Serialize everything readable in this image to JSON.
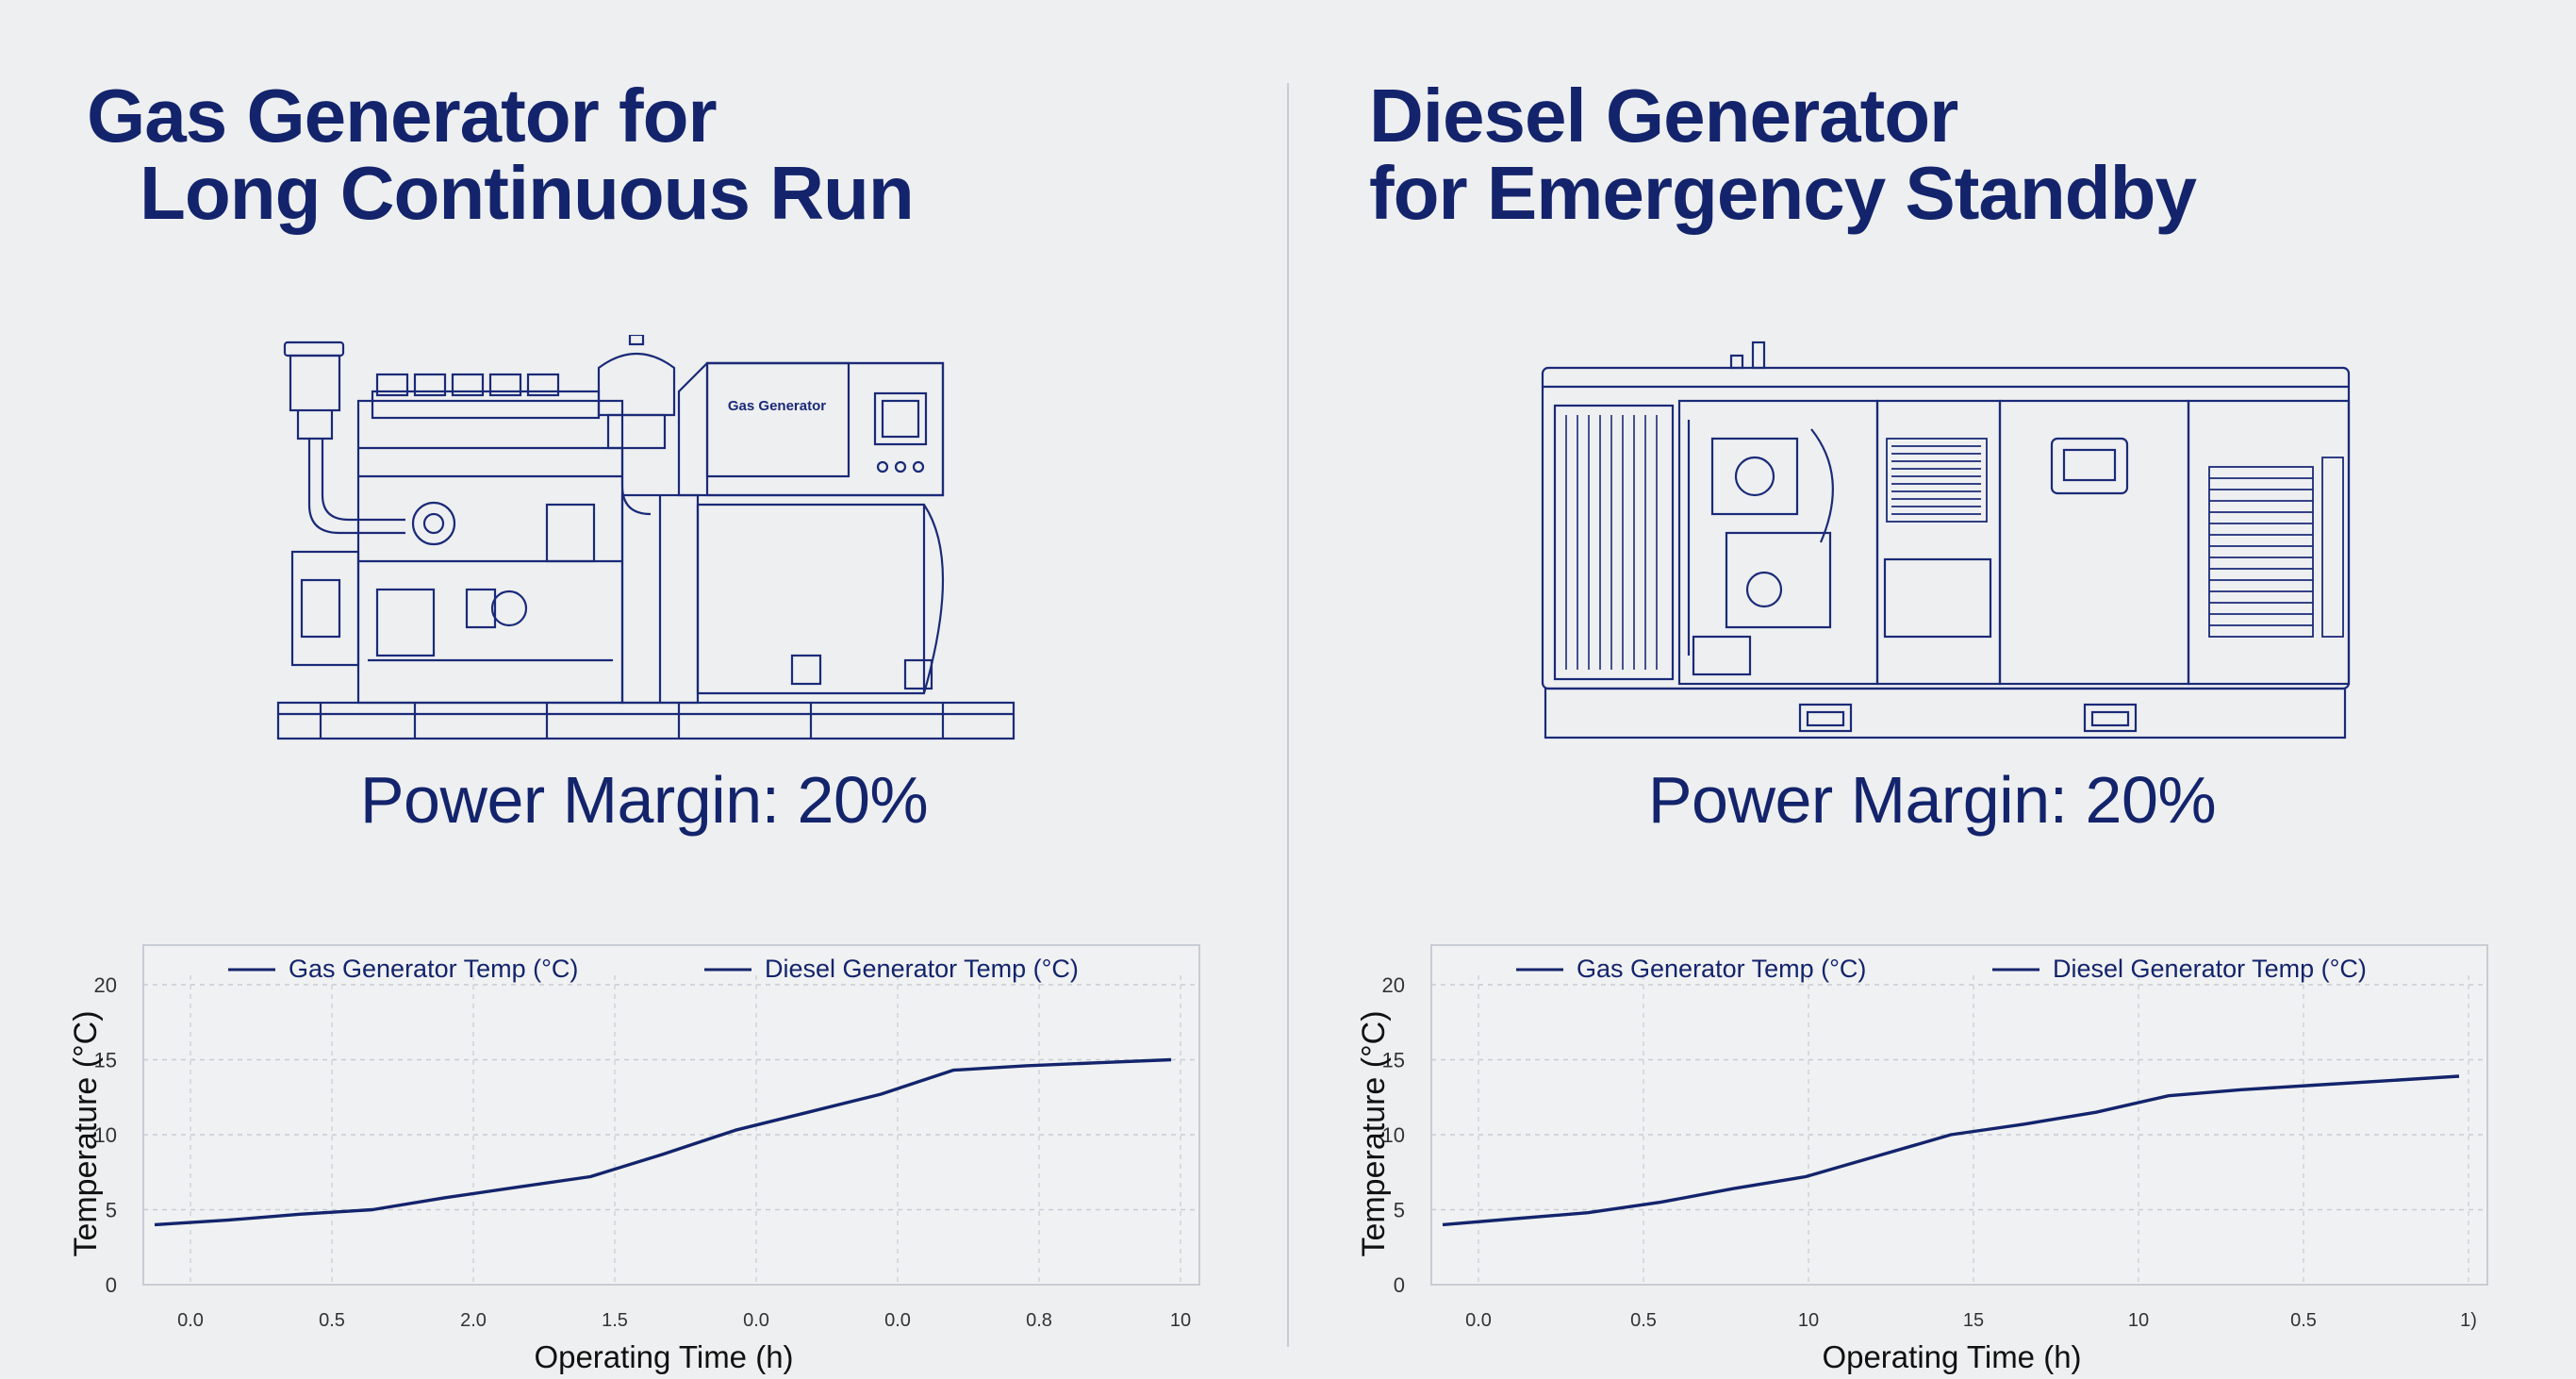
{
  "panels": [
    {
      "title_line1": "Gas Generator for",
      "title_line2": "Long Continuous Run",
      "machine_label": "Gas Generator",
      "power_margin": "Power Margin: 20%",
      "chart_data": {
        "type": "line",
        "legend": [
          "Gas Generator Temp (°C)",
          "Diesel Generator Temp (°C)"
        ],
        "xlabel": "Operating Time (h)",
        "ylabel": "Temperature (°C)",
        "x_tick_labels": [
          "0.0",
          "0.5",
          "2.0",
          "1.5",
          "0.0",
          "0.0",
          "0.8",
          "10"
        ],
        "y_ticks": [
          0,
          5,
          10,
          15,
          20
        ],
        "ylim": [
          0,
          20
        ],
        "grid": true,
        "legend_position": "top",
        "series": [
          {
            "values": [
              4.0,
              4.3,
              4.7,
              5.0,
              5.8,
              6.5,
              7.2,
              8.7,
              10.3,
              11.5,
              12.7,
              14.3,
              14.6,
              14.8,
              15.0
            ]
          }
        ]
      }
    },
    {
      "title_line1": "Diesel Generator",
      "title_line2": "for Emergency Standby",
      "power_margin": "Power Margin: 20%",
      "chart_data": {
        "type": "line",
        "legend": [
          "Gas Generator Temp (°C)",
          "Diesel Generator Temp (°C)"
        ],
        "xlabel": "Operating Time (h)",
        "ylabel": "Temperature (°C)",
        "x_tick_labels": [
          "0.0",
          "0.5",
          "10",
          "15",
          "10",
          "0.5",
          "1)"
        ],
        "y_ticks": [
          0,
          5,
          10,
          15,
          20
        ],
        "ylim": [
          0,
          20
        ],
        "grid": true,
        "legend_position": "top",
        "series": [
          {
            "values": [
              4.0,
              4.4,
              4.8,
              5.5,
              6.4,
              7.2,
              8.6,
              10.0,
              10.7,
              11.5,
              12.6,
              13.0,
              13.3,
              13.6,
              13.9
            ]
          }
        ]
      }
    }
  ],
  "colors": {
    "ink": "#13246c",
    "grid": "#c8ccd4",
    "background": "#eeeff0"
  }
}
